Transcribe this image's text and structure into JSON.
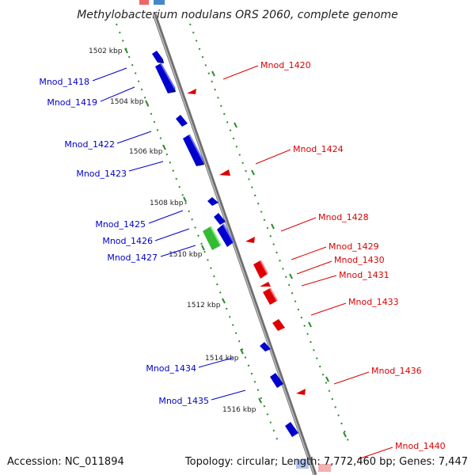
{
  "title": "Methylobacterium nodulans ORS 2060, complete genome",
  "footer": {
    "accession": "Accession: NC_011894",
    "summary": "Topology: circular; Length: 7,772,460 bp; Genes: 7,447"
  },
  "colors": {
    "backbone": "#888888",
    "tick": "#2e8b2e",
    "forward": "#dd0000",
    "reverse": "#0000cc",
    "other": "#33bb33"
  },
  "ruler": [
    {
      "label": "1502 kbp"
    },
    {
      "label": "1504 kbp"
    },
    {
      "label": "1506 kbp"
    },
    {
      "label": "1508 kbp"
    },
    {
      "label": "1510 kbp"
    },
    {
      "label": "1512 kbp"
    },
    {
      "label": "1514 kbp"
    },
    {
      "label": "1516 kbp"
    }
  ],
  "genes_reverse": [
    {
      "label": "Mnod_1418"
    },
    {
      "label": "Mnod_1419"
    },
    {
      "label": "Mnod_1422"
    },
    {
      "label": "Mnod_1423"
    },
    {
      "label": "Mnod_1425"
    },
    {
      "label": "Mnod_1426"
    },
    {
      "label": "Mnod_1427"
    },
    {
      "label": "Mnod_1434"
    },
    {
      "label": "Mnod_1435"
    }
  ],
  "genes_forward": [
    {
      "label": "Mnod_1420"
    },
    {
      "label": "Mnod_1424"
    },
    {
      "label": "Mnod_1428"
    },
    {
      "label": "Mnod_1429"
    },
    {
      "label": "Mnod_1430"
    },
    {
      "label": "Mnod_1431"
    },
    {
      "label": "Mnod_1433"
    },
    {
      "label": "Mnod_1436"
    },
    {
      "label": "Mnod_1440"
    }
  ]
}
